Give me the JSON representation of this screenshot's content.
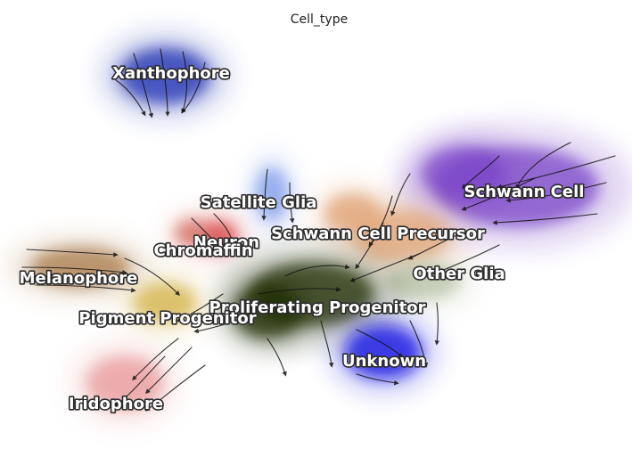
{
  "chart_data": {
    "type": "scatter",
    "title": "Cell_type",
    "xlabel": "",
    "ylabel": "",
    "axes_visible": false,
    "overlay": "velocity-streamlines",
    "legend": "on-data",
    "clusters": [
      {
        "name": "Xanthophore",
        "color": "#1f2fb0"
      },
      {
        "name": "Schwann Cell",
        "color": "#7a45c8"
      },
      {
        "name": "Satellite Glia",
        "color": "#7f9bea"
      },
      {
        "name": "Schwann Cell Precursor",
        "color": "#e0a274"
      },
      {
        "name": "Neuron",
        "color": "#d63a3a"
      },
      {
        "name": "Chromaffin",
        "color": "#d36a5e"
      },
      {
        "name": "Melanophore",
        "color": "#a97a4a"
      },
      {
        "name": "Other Glia",
        "color": "#b7c2a7"
      },
      {
        "name": "Proliferating Progenitor",
        "color": "#1d2a00"
      },
      {
        "name": "Pigment Progenitor",
        "color": "#d3b24a"
      },
      {
        "name": "Unknown",
        "color": "#1010e0"
      },
      {
        "name": "Iridophore",
        "color": "#e8999a"
      }
    ]
  }
}
